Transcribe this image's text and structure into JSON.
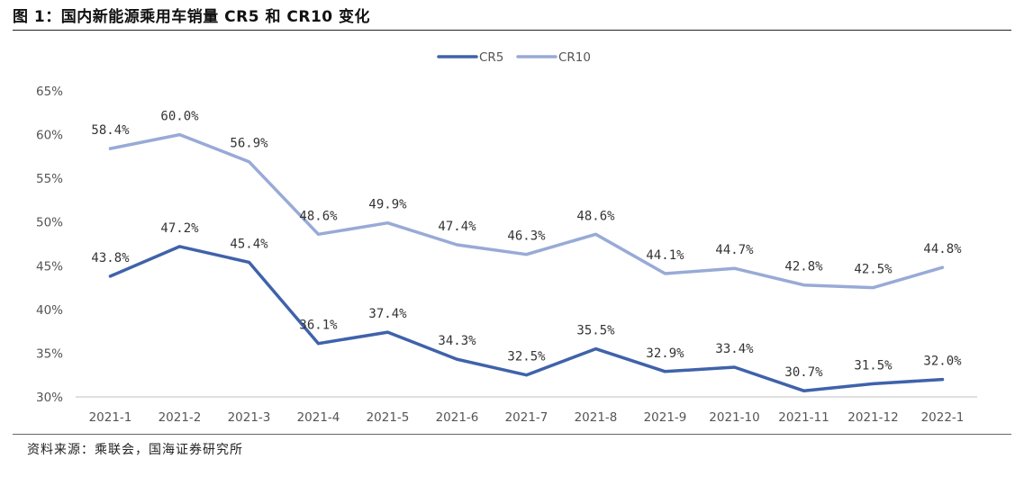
{
  "header": {
    "title": "图 1：国内新能源乘用车销量 CR5 和 CR10 变化"
  },
  "footer": {
    "source": "资料来源：乘联会，国海证券研究所"
  },
  "colors": {
    "cr5": "#3f62aa",
    "cr10": "#98aad6",
    "axis": "#bfbfbf"
  },
  "chart_data": {
    "type": "line",
    "title": "",
    "xlabel": "",
    "ylabel": "",
    "categories": [
      "2021-1",
      "2021-2",
      "2021-3",
      "2021-4",
      "2021-5",
      "2021-6",
      "2021-7",
      "2021-8",
      "2021-9",
      "2021-10",
      "2021-11",
      "2021-12",
      "2022-1"
    ],
    "ylim": [
      30,
      65
    ],
    "yticks": [
      "65%",
      "60%",
      "55%",
      "50%",
      "45%",
      "40%",
      "35%",
      "30%"
    ],
    "grid": false,
    "legend_position": "top-center",
    "series": [
      {
        "name": "CR5",
        "values": [
          43.8,
          47.2,
          45.4,
          36.1,
          37.4,
          34.3,
          32.5,
          35.5,
          32.9,
          33.4,
          30.7,
          31.5,
          32.0
        ],
        "labels": [
          "43.8%",
          "47.2%",
          "45.4%",
          "36.1%",
          "37.4%",
          "34.3%",
          "32.5%",
          "35.5%",
          "32.9%",
          "33.4%",
          "30.7%",
          "31.5%",
          "32.0%"
        ]
      },
      {
        "name": "CR10",
        "values": [
          58.4,
          60.0,
          56.9,
          48.6,
          49.9,
          47.4,
          46.3,
          48.6,
          44.1,
          44.7,
          42.8,
          42.5,
          44.8
        ],
        "labels": [
          "58.4%",
          "60.0%",
          "56.9%",
          "48.6%",
          "49.9%",
          "47.4%",
          "46.3%",
          "48.6%",
          "44.1%",
          "44.7%",
          "42.8%",
          "42.5%",
          "44.8%"
        ]
      }
    ]
  }
}
